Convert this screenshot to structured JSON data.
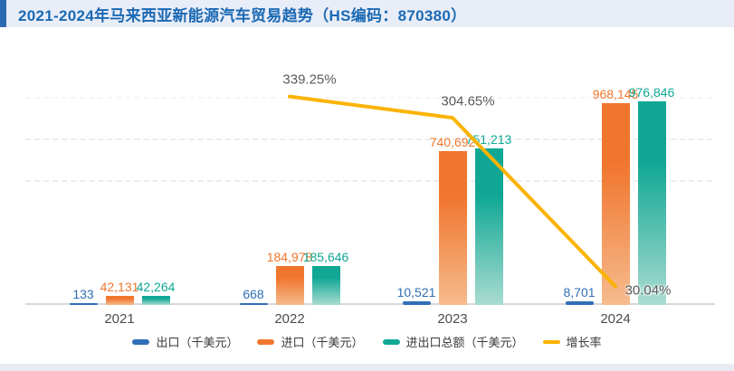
{
  "header": {
    "title": "2021-2024年马来西亚新能源汽车贸易趋势（HS编码：870380）",
    "title_color": "#1a69b4",
    "accent_color": "#2b6ab2",
    "background": "#e9edf7"
  },
  "chart_data": {
    "type": "bar",
    "title": "2021-2024年马来西亚新能源汽车贸易趋势（HS编码：870380）",
    "categories": [
      "2021",
      "2022",
      "2023",
      "2024"
    ],
    "series": [
      {
        "key": "export",
        "name": "出口（千美元）",
        "type": "bar",
        "color": "#2f6fb5",
        "values": [
          133,
          668,
          10521,
          8701
        ],
        "labels": [
          "133",
          "668",
          "10,521",
          "8,701"
        ]
      },
      {
        "key": "import",
        "name": "进口（千美元）",
        "type": "bar",
        "color": "#f0762e",
        "color_bottom": "#f6bb8e",
        "values": [
          42131,
          184978,
          740692,
          968145
        ],
        "labels": [
          "42,131",
          "184,978",
          "740,692",
          "968,145"
        ]
      },
      {
        "key": "total",
        "name": "进出口总额（千美元）",
        "type": "bar",
        "color": "#10a795",
        "color_bottom": "#a9dcd0",
        "values": [
          42264,
          185646,
          751213,
          976846
        ],
        "labels": [
          "42,264",
          "185,646",
          "751,213",
          "976,846"
        ]
      },
      {
        "key": "growth-rate",
        "name": "增长率",
        "type": "line",
        "color": "#fbb303",
        "values": [
          null,
          339.25,
          304.65,
          30.04
        ],
        "labels": [
          "",
          "339.25%",
          "304.65%",
          "30.04%"
        ]
      }
    ],
    "primary_axis": {
      "unit": "千美元",
      "min": 0,
      "max": 1000000,
      "gridline_values": [
        600000,
        800000,
        1000000
      ],
      "grid_style": "dashed"
    },
    "secondary_axis": {
      "unit": "%",
      "min": 0,
      "max": 380
    },
    "legend_position": "bottom"
  }
}
